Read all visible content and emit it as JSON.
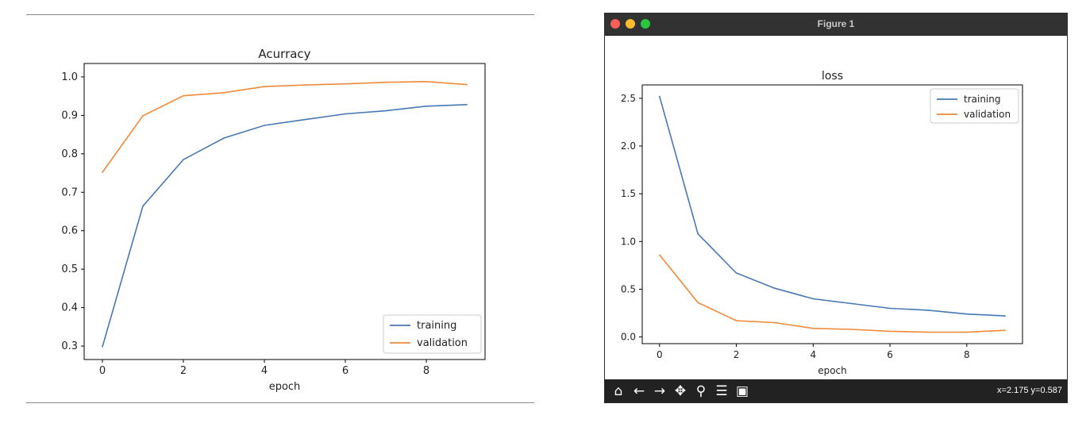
{
  "left_panel": {
    "chart_data": {
      "type": "line",
      "title": "Acurracy",
      "xlabel": "epoch",
      "ylabel": "",
      "x": [
        0,
        1,
        2,
        3,
        4,
        5,
        6,
        7,
        8,
        9
      ],
      "xticks": [
        "0",
        "2",
        "4",
        "6",
        "8"
      ],
      "yticks": [
        "0.3",
        "0.4",
        "0.5",
        "0.6",
        "0.7",
        "0.8",
        "0.9",
        "1.0"
      ],
      "xlim": [
        -0.45,
        9.45
      ],
      "ylim": [
        0.265,
        1.035
      ],
      "legend_position": "bottom-right",
      "series": [
        {
          "name": "training",
          "color": "#4878b4",
          "values": [
            0.298,
            0.664,
            0.785,
            0.841,
            0.874,
            0.889,
            0.904,
            0.912,
            0.924,
            0.928
          ]
        },
        {
          "name": "validation",
          "color": "#ee8a3a",
          "values": [
            0.752,
            0.899,
            0.951,
            0.959,
            0.975,
            0.979,
            0.982,
            0.986,
            0.988,
            0.98
          ]
        }
      ]
    }
  },
  "right_panel": {
    "window_title": "Figure 1",
    "traffic_lights": {
      "close": "#ff5f57",
      "minimize": "#febc2e",
      "zoom": "#28c840"
    },
    "toolbar": {
      "buttons": [
        {
          "icon": "home-icon",
          "glyph": "⌂"
        },
        {
          "icon": "back-arrow-icon",
          "glyph": "←"
        },
        {
          "icon": "forward-arrow-icon",
          "glyph": "→"
        },
        {
          "icon": "pan-icon",
          "glyph": "✥"
        },
        {
          "icon": "zoom-icon",
          "glyph": "⚲"
        },
        {
          "icon": "configure-subplots-icon",
          "glyph": "☰"
        },
        {
          "icon": "save-icon",
          "glyph": "▣"
        }
      ],
      "coordinates": "x=2.175 y=0.587"
    },
    "chart_data": {
      "type": "line",
      "title": "loss",
      "xlabel": "epoch",
      "ylabel": "",
      "x": [
        0,
        1,
        2,
        3,
        4,
        5,
        6,
        7,
        8,
        9
      ],
      "xticks": [
        "0",
        "2",
        "4",
        "6",
        "8"
      ],
      "yticks": [
        "0.0",
        "0.5",
        "1.0",
        "1.5",
        "2.0",
        "2.5"
      ],
      "xlim": [
        -0.45,
        9.45
      ],
      "ylim": [
        -0.07,
        2.64
      ],
      "legend_position": "top-right",
      "series": [
        {
          "name": "training",
          "color": "#4878b4",
          "values": [
            2.52,
            1.08,
            0.67,
            0.51,
            0.4,
            0.35,
            0.3,
            0.28,
            0.24,
            0.22
          ]
        },
        {
          "name": "validation",
          "color": "#ee8a3a",
          "values": [
            0.86,
            0.36,
            0.17,
            0.15,
            0.09,
            0.08,
            0.06,
            0.05,
            0.05,
            0.07
          ]
        }
      ]
    }
  }
}
